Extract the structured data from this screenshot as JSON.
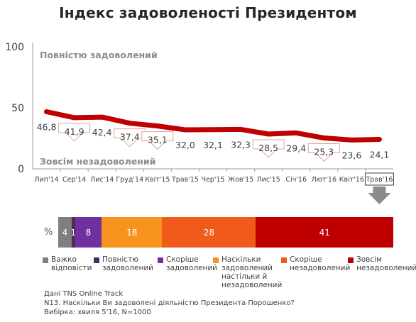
{
  "title": "Індекс задоволеності Президентом",
  "chart_data": [
    {
      "type": "line",
      "x": [
        "Лип'14",
        "Сер'14",
        "Лис'14",
        "Груд'14",
        "Квіт'15",
        "Трав'15",
        "Чер'15",
        "Жов'15",
        "Лис'15",
        "Січ'16",
        "Лют'16",
        "Квіт'16",
        "Трав'16"
      ],
      "values": [
        46.8,
        41.9,
        42.4,
        37.4,
        35.1,
        32.0,
        32.1,
        32.3,
        28.5,
        29.4,
        25.3,
        23.6,
        24.1
      ],
      "value_labels": [
        "46,8",
        "41,9",
        "42,4",
        "37,4",
        "35,1",
        "32,0",
        "32,1",
        "32,3",
        "28,5",
        "29,4",
        "25,3",
        "23,6",
        "24,1"
      ],
      "decreases_marked": [
        "Сер'14",
        "Груд'14",
        "Квіт'15",
        "Лис'15",
        "Лют'16"
      ],
      "ylim": [
        0,
        100
      ],
      "yticks": [
        0,
        50,
        100
      ],
      "grid": false,
      "annotations": {
        "top": "Повністю задоволений",
        "bottom": "Зовсім незадоволений"
      },
      "highlighted_category": "Трав'16",
      "line_color": "#c00000"
    },
    {
      "type": "bar",
      "stacked": true,
      "orientation": "horizontal",
      "axis_label": "%",
      "series": [
        {
          "name": "Важко відповісти",
          "value": 4,
          "label": "4",
          "color": "#7f7f7f"
        },
        {
          "name": "Повністю задоволений",
          "value": 1,
          "label": "1",
          "color": "#4a2c5e"
        },
        {
          "name": "Скоріше задоволений",
          "value": 8,
          "label": "8",
          "color": "#7030a0"
        },
        {
          "name": "Наскільки задоволений настільки й незадоволений",
          "value": 18,
          "label": "18",
          "color": "#f7941d"
        },
        {
          "name": "Скоріше незадоволений",
          "value": 28,
          "label": "28",
          "color": "#f05a1a"
        },
        {
          "name": "Зовсім незадоволений",
          "value": 41,
          "label": "41",
          "color": "#c00000"
        }
      ]
    }
  ],
  "legend": [
    {
      "text": "Важко\nвідповісти",
      "color": "#7f7f7f"
    },
    {
      "text": "Повністю\nзадоволений",
      "color": "#4a2c5e"
    },
    {
      "text": "Скоріше\nзадоволений",
      "color": "#7030a0"
    },
    {
      "text": "Наскільки\nзадоволений\nнастільки й\nнезадоволений",
      "color": "#f7941d"
    },
    {
      "text": "Скоріше\nнезадоволений",
      "color": "#f05a1a"
    },
    {
      "text": "Зовсім\nнезадоволений",
      "color": "#c00000"
    }
  ],
  "footnotes": [
    "Дані TNS Online Track",
    "N13. Наскільки Ви задоволені діяльністю Президента Порошенко?",
    "Вибірка: хвиля 5'16, N=1000"
  ]
}
